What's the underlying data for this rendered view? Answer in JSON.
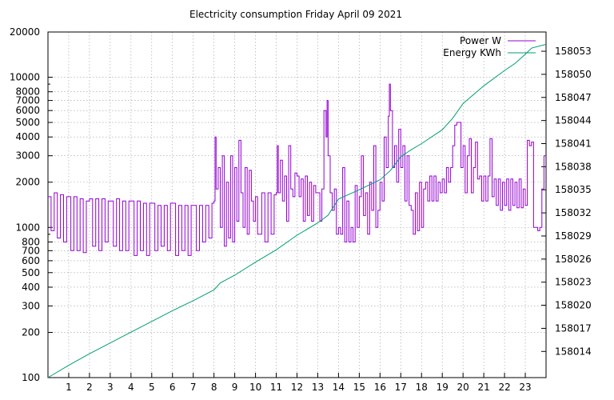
{
  "chart_data": {
    "type": "line",
    "title": "Electricity consumption Friday April 09 2021",
    "xlabel": "",
    "ylabel": "",
    "y2label": "",
    "grid": true,
    "legend_position": "top-right",
    "x_range": [
      0,
      24
    ],
    "x_ticks": [
      1,
      2,
      3,
      4,
      5,
      6,
      7,
      8,
      9,
      10,
      11,
      12,
      13,
      14,
      15,
      16,
      17,
      18,
      19,
      20,
      21,
      22,
      23
    ],
    "y_scale": "log",
    "y_range": [
      100,
      20000
    ],
    "y_ticks": [
      100,
      200,
      300,
      400,
      500,
      600,
      700,
      800,
      1000,
      2000,
      3000,
      4000,
      5000,
      6000,
      7000,
      8000,
      10000,
      20000
    ],
    "y2_range": [
      158010.6,
      158055.5
    ],
    "y2_ticks": [
      158014,
      158017,
      158020,
      158023,
      158026,
      158029,
      158032,
      158035,
      158038,
      158041,
      158044,
      158047,
      158050,
      158053
    ],
    "series": [
      {
        "name": "Power W",
        "axis": "y",
        "color": "#9400d3",
        "points": [
          [
            0.0,
            1600
          ],
          [
            0.15,
            950
          ],
          [
            0.3,
            1700
          ],
          [
            0.45,
            850
          ],
          [
            0.6,
            1650
          ],
          [
            0.75,
            800
          ],
          [
            0.9,
            1600
          ],
          [
            1.0,
            1600
          ],
          [
            1.1,
            700
          ],
          [
            1.25,
            1600
          ],
          [
            1.4,
            700
          ],
          [
            1.55,
            1550
          ],
          [
            1.7,
            680
          ],
          [
            1.85,
            1500
          ],
          [
            2.0,
            1550
          ],
          [
            2.15,
            750
          ],
          [
            2.3,
            1550
          ],
          [
            2.45,
            700
          ],
          [
            2.6,
            1550
          ],
          [
            2.75,
            800
          ],
          [
            2.9,
            1500
          ],
          [
            3.0,
            1500
          ],
          [
            3.15,
            750
          ],
          [
            3.3,
            1550
          ],
          [
            3.45,
            700
          ],
          [
            3.6,
            1500
          ],
          [
            3.75,
            700
          ],
          [
            3.9,
            1500
          ],
          [
            4.0,
            1500
          ],
          [
            4.15,
            650
          ],
          [
            4.3,
            1500
          ],
          [
            4.45,
            700
          ],
          [
            4.6,
            1450
          ],
          [
            4.75,
            650
          ],
          [
            4.9,
            1450
          ],
          [
            5.0,
            1450
          ],
          [
            5.15,
            700
          ],
          [
            5.3,
            1400
          ],
          [
            5.45,
            750
          ],
          [
            5.6,
            1400
          ],
          [
            5.75,
            700
          ],
          [
            5.9,
            1450
          ],
          [
            6.0,
            1450
          ],
          [
            6.15,
            650
          ],
          [
            6.3,
            1400
          ],
          [
            6.45,
            700
          ],
          [
            6.6,
            1400
          ],
          [
            6.75,
            650
          ],
          [
            6.9,
            1400
          ],
          [
            7.0,
            1400
          ],
          [
            7.15,
            700
          ],
          [
            7.3,
            1400
          ],
          [
            7.45,
            800
          ],
          [
            7.6,
            1400
          ],
          [
            7.75,
            850
          ],
          [
            7.9,
            1450
          ],
          [
            8.0,
            1500
          ],
          [
            8.05,
            4000
          ],
          [
            8.1,
            1800
          ],
          [
            8.2,
            2500
          ],
          [
            8.3,
            1000
          ],
          [
            8.4,
            3000
          ],
          [
            8.5,
            750
          ],
          [
            8.6,
            2000
          ],
          [
            8.7,
            850
          ],
          [
            8.8,
            3000
          ],
          [
            8.9,
            800
          ],
          [
            9.0,
            2500
          ],
          [
            9.1,
            1100
          ],
          [
            9.2,
            3800
          ],
          [
            9.3,
            1700
          ],
          [
            9.4,
            1000
          ],
          [
            9.5,
            2500
          ],
          [
            9.6,
            900
          ],
          [
            9.7,
            2400
          ],
          [
            9.8,
            1500
          ],
          [
            9.9,
            1100
          ],
          [
            10.0,
            1600
          ],
          [
            10.1,
            900
          ],
          [
            10.3,
            1700
          ],
          [
            10.45,
            800
          ],
          [
            10.6,
            1700
          ],
          [
            10.75,
            900
          ],
          [
            10.9,
            1650
          ],
          [
            11.0,
            1700
          ],
          [
            11.05,
            3500
          ],
          [
            11.1,
            1700
          ],
          [
            11.2,
            2800
          ],
          [
            11.3,
            1500
          ],
          [
            11.4,
            2200
          ],
          [
            11.5,
            1100
          ],
          [
            11.6,
            3500
          ],
          [
            11.7,
            1800
          ],
          [
            11.8,
            1600
          ],
          [
            11.9,
            2300
          ],
          [
            12.0,
            2200
          ],
          [
            12.1,
            1600
          ],
          [
            12.2,
            2100
          ],
          [
            12.3,
            1100
          ],
          [
            12.4,
            2200
          ],
          [
            12.5,
            1200
          ],
          [
            12.6,
            2000
          ],
          [
            12.7,
            1100
          ],
          [
            12.8,
            1900
          ],
          [
            12.9,
            1700
          ],
          [
            13.0,
            1700
          ],
          [
            13.1,
            1100
          ],
          [
            13.2,
            1800
          ],
          [
            13.3,
            6000
          ],
          [
            13.4,
            4000
          ],
          [
            13.45,
            7000
          ],
          [
            13.5,
            3000
          ],
          [
            13.6,
            1700
          ],
          [
            13.7,
            1300
          ],
          [
            13.8,
            1800
          ],
          [
            13.9,
            900
          ],
          [
            14.0,
            1000
          ],
          [
            14.1,
            900
          ],
          [
            14.2,
            2500
          ],
          [
            14.3,
            800
          ],
          [
            14.4,
            1500
          ],
          [
            14.5,
            800
          ],
          [
            14.6,
            1000
          ],
          [
            14.7,
            800
          ],
          [
            14.8,
            1900
          ],
          [
            14.9,
            1000
          ],
          [
            15.0,
            1600
          ],
          [
            15.1,
            3000
          ],
          [
            15.2,
            1200
          ],
          [
            15.3,
            1700
          ],
          [
            15.4,
            900
          ],
          [
            15.5,
            2000
          ],
          [
            15.6,
            1300
          ],
          [
            15.7,
            3500
          ],
          [
            15.8,
            1000
          ],
          [
            15.9,
            1300
          ],
          [
            16.0,
            2000
          ],
          [
            16.1,
            1500
          ],
          [
            16.2,
            4000
          ],
          [
            16.3,
            2500
          ],
          [
            16.4,
            5500
          ],
          [
            16.45,
            9000
          ],
          [
            16.5,
            6000
          ],
          [
            16.6,
            2500
          ],
          [
            16.7,
            3500
          ],
          [
            16.8,
            2000
          ],
          [
            16.9,
            4500
          ],
          [
            17.0,
            2500
          ],
          [
            17.1,
            3500
          ],
          [
            17.2,
            1500
          ],
          [
            17.3,
            3000
          ],
          [
            17.4,
            1400
          ],
          [
            17.5,
            1300
          ],
          [
            17.6,
            900
          ],
          [
            17.7,
            1700
          ],
          [
            17.8,
            950
          ],
          [
            17.9,
            2000
          ],
          [
            18.0,
            1000
          ],
          [
            18.1,
            1800
          ],
          [
            18.2,
            2000
          ],
          [
            18.3,
            1500
          ],
          [
            18.4,
            2200
          ],
          [
            18.5,
            1500
          ],
          [
            18.6,
            2200
          ],
          [
            18.7,
            1500
          ],
          [
            18.8,
            2000
          ],
          [
            18.9,
            1700
          ],
          [
            19.0,
            2100
          ],
          [
            19.1,
            1700
          ],
          [
            19.2,
            2500
          ],
          [
            19.3,
            2000
          ],
          [
            19.4,
            2500
          ],
          [
            19.5,
            3500
          ],
          [
            19.6,
            4800
          ],
          [
            19.7,
            5000
          ],
          [
            19.8,
            5000
          ],
          [
            19.9,
            2500
          ],
          [
            20.0,
            3500
          ],
          [
            20.1,
            1700
          ],
          [
            20.2,
            3000
          ],
          [
            20.3,
            3900
          ],
          [
            20.4,
            1700
          ],
          [
            20.5,
            2500
          ],
          [
            20.6,
            3700
          ],
          [
            20.7,
            2100
          ],
          [
            20.8,
            2200
          ],
          [
            20.9,
            1500
          ],
          [
            21.0,
            2200
          ],
          [
            21.1,
            1500
          ],
          [
            21.2,
            2200
          ],
          [
            21.3,
            3900
          ],
          [
            21.4,
            1600
          ],
          [
            21.5,
            2100
          ],
          [
            21.6,
            1400
          ],
          [
            21.7,
            2100
          ],
          [
            21.8,
            1300
          ],
          [
            21.9,
            2000
          ],
          [
            22.0,
            1400
          ],
          [
            22.1,
            2100
          ],
          [
            22.2,
            1300
          ],
          [
            22.3,
            2100
          ],
          [
            22.4,
            1400
          ],
          [
            22.5,
            2000
          ],
          [
            22.6,
            1350
          ],
          [
            22.7,
            2100
          ],
          [
            22.8,
            1350
          ],
          [
            22.9,
            1800
          ],
          [
            23.0,
            1400
          ],
          [
            23.1,
            3800
          ],
          [
            23.2,
            3500
          ],
          [
            23.3,
            3700
          ],
          [
            23.4,
            1000
          ],
          [
            23.5,
            1000
          ],
          [
            23.6,
            950
          ],
          [
            23.7,
            1000
          ],
          [
            23.8,
            1800
          ],
          [
            23.9,
            3000
          ],
          [
            24.0,
            3000
          ]
        ]
      },
      {
        "name": "Energy KWh",
        "axis": "y2",
        "color": "#009e73",
        "points": [
          [
            0.0,
            158010.6
          ],
          [
            1.0,
            158012.2
          ],
          [
            2.0,
            158013.7
          ],
          [
            3.0,
            158015.1
          ],
          [
            4.0,
            158016.5
          ],
          [
            5.0,
            158017.9
          ],
          [
            6.0,
            158019.3
          ],
          [
            7.0,
            158020.6
          ],
          [
            8.0,
            158022.0
          ],
          [
            8.3,
            158022.9
          ],
          [
            9.0,
            158023.9
          ],
          [
            10.0,
            158025.6
          ],
          [
            11.0,
            158027.2
          ],
          [
            12.0,
            158029.1
          ],
          [
            13.0,
            158030.7
          ],
          [
            13.5,
            158031.7
          ],
          [
            14.0,
            158033.8
          ],
          [
            15.0,
            158035.0
          ],
          [
            16.0,
            158036.3
          ],
          [
            16.5,
            158037.5
          ],
          [
            17.0,
            158039.3
          ],
          [
            17.5,
            158040.2
          ],
          [
            18.0,
            158041.0
          ],
          [
            19.0,
            158042.8
          ],
          [
            19.5,
            158044.3
          ],
          [
            20.0,
            158046.2
          ],
          [
            21.0,
            158048.5
          ],
          [
            22.0,
            158050.5
          ],
          [
            22.5,
            158051.4
          ],
          [
            23.0,
            158052.6
          ],
          [
            23.3,
            158053.4
          ],
          [
            24.0,
            158053.9
          ]
        ]
      }
    ]
  },
  "legend": {
    "power_label": "Power W",
    "energy_label": "Energy KWh"
  }
}
